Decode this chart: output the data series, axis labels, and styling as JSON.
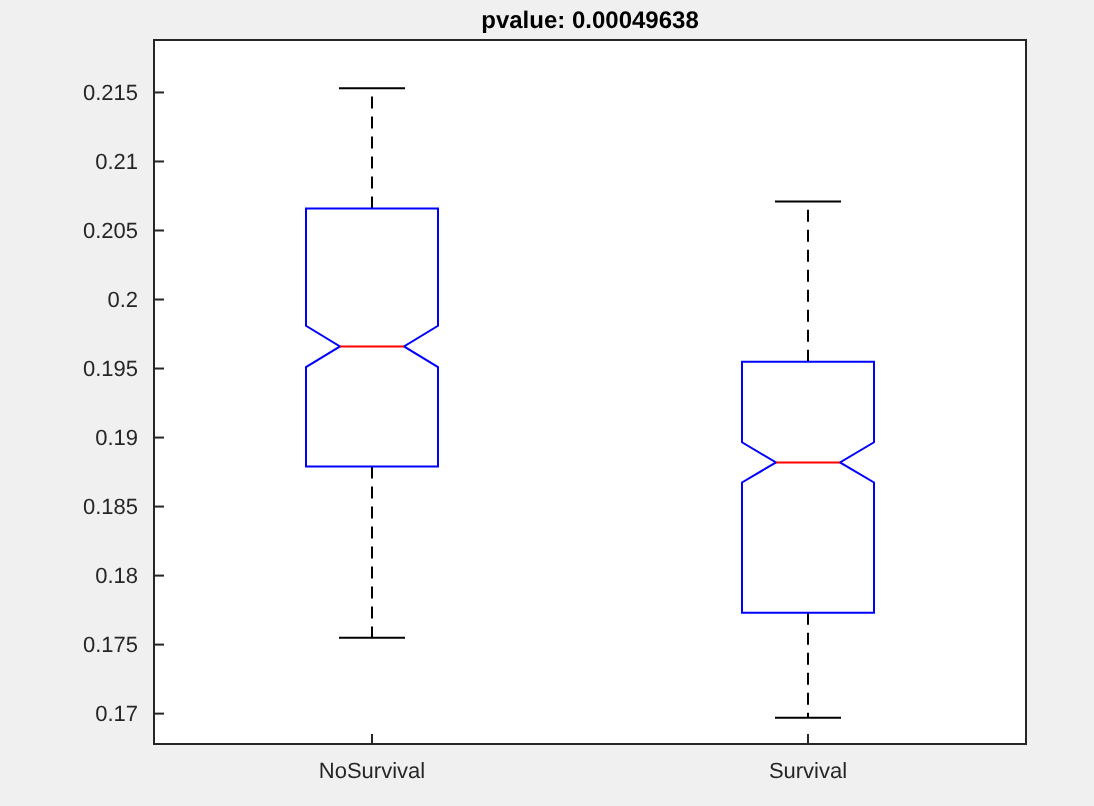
{
  "chart_data": {
    "type": "box",
    "title": "pvalue: 0.00049638",
    "categories": [
      "NoSurvival",
      "Survival"
    ],
    "color": "#0000ff",
    "boxes": [
      {
        "low": 0.1755,
        "q1": 0.1879,
        "median": 0.1966,
        "q3": 0.2066,
        "high": 0.2153
      },
      {
        "low": 0.1697,
        "q1": 0.1773,
        "median": 0.1882,
        "q3": 0.1955,
        "high": 0.2071
      }
    ],
    "ylim": [
      0.1678,
      0.2188
    ],
    "yticks": [
      0.17,
      0.175,
      0.18,
      0.185,
      0.19,
      0.195,
      0.2,
      0.205,
      0.21,
      0.215
    ],
    "grid": false
  }
}
